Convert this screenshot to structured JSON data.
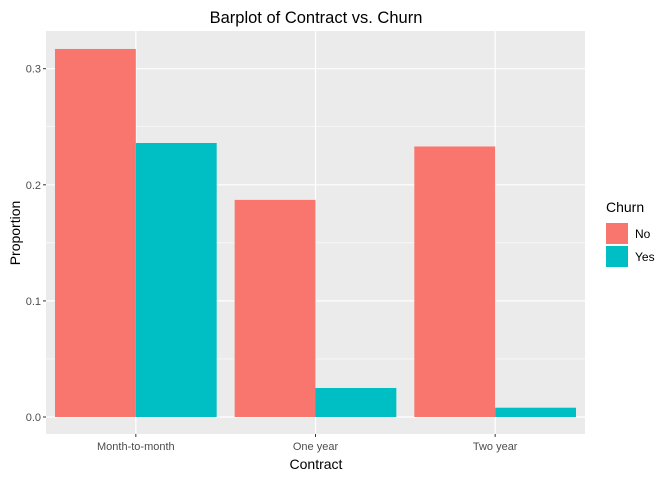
{
  "chart_data": {
    "type": "bar",
    "title": "Barplot of Contract vs. Churn",
    "xlabel": "Contract",
    "ylabel": "Proportion",
    "categories": [
      "Month-to-month",
      "One year",
      "Two year"
    ],
    "series": [
      {
        "name": "No",
        "color": "#F8766D",
        "values": [
          0.317,
          0.187,
          0.233
        ]
      },
      {
        "name": "Yes",
        "color": "#00BFC4",
        "values": [
          0.236,
          0.025,
          0.008
        ]
      }
    ],
    "ylim": [
      0,
      0.33
    ],
    "yticks": [
      0.0,
      0.1,
      0.2,
      0.3
    ],
    "ytick_labels": [
      "0.0",
      "0.1",
      "0.2",
      "0.3"
    ],
    "grid": true,
    "legend": {
      "title": "Churn",
      "placement": "right"
    },
    "colors": {
      "panel_background": "#EBEBEB",
      "grid": "#FFFFFF"
    }
  }
}
